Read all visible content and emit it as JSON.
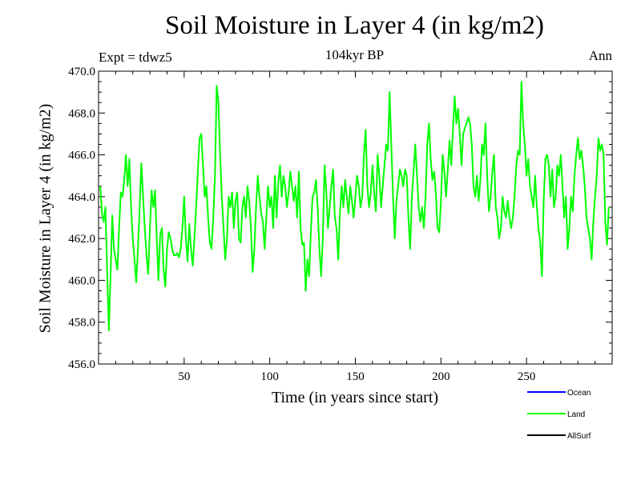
{
  "chart_data": {
    "type": "line",
    "title": "Soil Moisture in Layer 4 (in kg/m2)",
    "subtitle": "104kyr BP",
    "experiment_label": "Expt = tdwz5",
    "period_label": "Ann",
    "xlabel": "Time (in years since start)",
    "ylabel": "Soil Moisture in Layer 4 (in kg/m2)",
    "xlim": [
      0,
      300
    ],
    "ylim": [
      456,
      470
    ],
    "x_ticks": [
      50,
      100,
      150,
      200,
      250
    ],
    "y_ticks": [
      "456.0",
      "458.0",
      "460.0",
      "462.0",
      "464.0",
      "466.0",
      "468.0",
      "470.0"
    ],
    "legend_position": "bottom-right",
    "series": [
      {
        "name": "Ocean",
        "color": "#0000ff",
        "values": []
      },
      {
        "name": "Land",
        "color": "#00ff00",
        "x_start": 1,
        "x_step": 1,
        "values": [
          464.5,
          463.2,
          462.8,
          463.5,
          460.5,
          457.6,
          460.2,
          463.1,
          461.5,
          461.0,
          460.5,
          462.5,
          464.2,
          464.0,
          464.8,
          466.0,
          464.5,
          465.8,
          463.5,
          462.0,
          461.0,
          459.9,
          461.5,
          463.5,
          465.6,
          464.0,
          462.5,
          461.2,
          460.3,
          462.5,
          464.3,
          463.5,
          464.3,
          462.0,
          460.0,
          462.2,
          462.5,
          460.5,
          459.7,
          461.5,
          462.3,
          462.0,
          461.5,
          461.2,
          461.2,
          461.3,
          461.1,
          461.5,
          462.5,
          464.0,
          462.0,
          460.9,
          462.7,
          461.5,
          460.7,
          462.0,
          463.5,
          465.2,
          466.8,
          467.0,
          465.5,
          464.0,
          464.5,
          463.0,
          461.8,
          461.5,
          463.0,
          465.0,
          469.3,
          468.5,
          466.0,
          464.0,
          462.5,
          461.0,
          462.0,
          464.0,
          463.5,
          464.2,
          462.5,
          463.8,
          464.2,
          462.0,
          461.8,
          463.5,
          464.0,
          463.0,
          464.5,
          463.8,
          462.5,
          460.4,
          461.5,
          463.5,
          465.0,
          464.0,
          463.2,
          462.8,
          461.5,
          463.0,
          464.5,
          463.5,
          464.0,
          462.5,
          465.0,
          463.0,
          464.7,
          465.5,
          464.0,
          465.0,
          464.5,
          463.5,
          464.2,
          465.2,
          464.5,
          463.8,
          464.5,
          463.0,
          465.2,
          462.5,
          461.7,
          461.8,
          459.5,
          461.0,
          460.2,
          462.3,
          464.0,
          464.2,
          464.8,
          463.5,
          461.5,
          460.2,
          462.0,
          465.5,
          464.3,
          462.5,
          463.5,
          464.5,
          465.3,
          463.0,
          462.5,
          461.0,
          463.2,
          464.5,
          463.5,
          464.8,
          464.0,
          463.2,
          464.5,
          463.8,
          463.0,
          464.0,
          465.0,
          464.5,
          463.5,
          464.0,
          466.0,
          467.2,
          464.5,
          463.5,
          464.2,
          465.5,
          464.2,
          463.3,
          466.0,
          465.0,
          463.5,
          464.5,
          465.5,
          466.5,
          466.2,
          469.0,
          466.5,
          464.0,
          462.0,
          463.8,
          464.5,
          465.3,
          465.0,
          464.5,
          465.3,
          465.0,
          463.0,
          461.5,
          464.0,
          465.2,
          466.5,
          465.0,
          463.5,
          462.8,
          463.5,
          462.5,
          464.0,
          466.5,
          467.5,
          465.8,
          464.8,
          465.2,
          464.2,
          462.5,
          462.3,
          463.8,
          466.0,
          465.2,
          464.0,
          465.3,
          466.7,
          465.5,
          467.2,
          468.8,
          467.5,
          468.2,
          467.0,
          465.5,
          467.0,
          467.3,
          467.5,
          467.8,
          467.5,
          466.5,
          464.5,
          464.0,
          465.0,
          463.8,
          464.8,
          466.5,
          466.0,
          467.5,
          465.0,
          463.3,
          464.0,
          465.2,
          466.0,
          463.5,
          463.0,
          462.0,
          462.5,
          464.0,
          463.3,
          463.0,
          463.8,
          463.0,
          462.5,
          463.0,
          464.0,
          465.5,
          466.2,
          466.0,
          469.5,
          467.5,
          466.5,
          465.0,
          465.8,
          464.5,
          464.0,
          463.5,
          465.0,
          463.5,
          462.5,
          461.8,
          460.2,
          463.8,
          465.8,
          466.0,
          465.5,
          464.0,
          465.3,
          463.5,
          464.0,
          465.5,
          465.0,
          466.0,
          464.5,
          463.0,
          464.0,
          461.5,
          462.5,
          464.0,
          463.3,
          465.0,
          466.0,
          466.8,
          465.8,
          466.2,
          465.5,
          464.5,
          463.0,
          462.5,
          462.0,
          461.0,
          462.8,
          464.0,
          465.0,
          466.8,
          466.2,
          466.5,
          466.0,
          462.8,
          461.7,
          463.5
        ]
      },
      {
        "name": "AllSurf",
        "color": "#000000",
        "values": []
      }
    ]
  }
}
